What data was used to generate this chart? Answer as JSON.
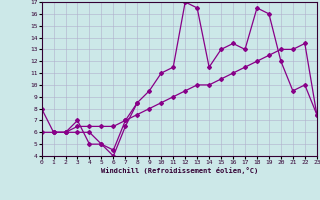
{
  "xlabel": "Windchill (Refroidissement éolien,°C)",
  "bg_color": "#cce8e8",
  "line_color": "#880088",
  "grid_color": "#b0b0cc",
  "xmin": 0,
  "xmax": 23,
  "ymin": 4,
  "ymax": 17,
  "xticks": [
    0,
    1,
    2,
    3,
    4,
    5,
    6,
    7,
    8,
    9,
    10,
    11,
    12,
    13,
    14,
    15,
    16,
    17,
    18,
    19,
    20,
    21,
    22,
    23
  ],
  "yticks": [
    4,
    5,
    6,
    7,
    8,
    9,
    10,
    11,
    12,
    13,
    14,
    15,
    16,
    17
  ],
  "series": [
    {
      "x": [
        0,
        1,
        2,
        3,
        4,
        5,
        6,
        7,
        8
      ],
      "y": [
        8,
        6,
        6,
        7,
        5,
        5,
        4,
        6.5,
        8.5
      ]
    },
    {
      "x": [
        1,
        2,
        3,
        4,
        5,
        6,
        7,
        8,
        9,
        10,
        11,
        12,
        13,
        14,
        15,
        16,
        17,
        18,
        19,
        20,
        21,
        22,
        23
      ],
      "y": [
        6,
        6,
        6,
        6,
        5,
        4.5,
        7,
        8.5,
        9.5,
        11,
        11.5,
        17,
        16.5,
        11.5,
        13,
        13.5,
        13,
        16.5,
        16,
        12,
        9.5,
        10,
        7.5
      ]
    },
    {
      "x": [
        0,
        1,
        2,
        3,
        4,
        5,
        6,
        7,
        8,
        9,
        10,
        11,
        12,
        13,
        14,
        15,
        16,
        17,
        18,
        19,
        20,
        21,
        22,
        23
      ],
      "y": [
        6,
        6,
        6,
        6.5,
        6.5,
        6.5,
        6.5,
        7,
        7.5,
        8,
        8.5,
        9,
        9.5,
        10,
        10,
        10.5,
        11,
        11.5,
        12,
        12.5,
        13,
        13,
        13.5,
        7.5
      ]
    }
  ]
}
